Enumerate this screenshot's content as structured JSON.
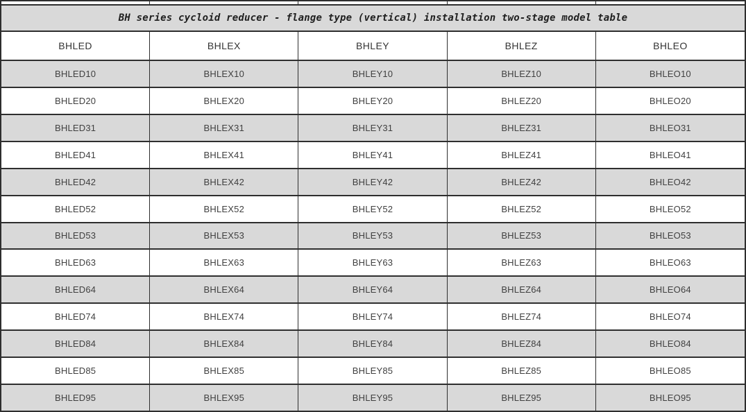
{
  "table": {
    "title": "BH series cycloid reducer - flange type (vertical) installation two-stage model table",
    "columns": [
      "BHLED",
      "BHLEX",
      "BHLEY",
      "BHLEZ",
      "BHLEO"
    ],
    "rows": [
      [
        "BHLED10",
        "BHLEX10",
        "BHLEY10",
        "BHLEZ10",
        "BHLEO10"
      ],
      [
        "BHLED20",
        "BHLEX20",
        "BHLEY20",
        "BHLEZ20",
        "BHLEO20"
      ],
      [
        "BHLED31",
        "BHLEX31",
        "BHLEY31",
        "BHLEZ31",
        "BHLEO31"
      ],
      [
        "BHLED41",
        "BHLEX41",
        "BHLEY41",
        "BHLEZ41",
        "BHLEO41"
      ],
      [
        "BHLED42",
        "BHLEX42",
        "BHLEY42",
        "BHLEZ42",
        "BHLEO42"
      ],
      [
        "BHLED52",
        "BHLEX52",
        "BHLEY52",
        "BHLEZ52",
        "BHLEO52"
      ],
      [
        "BHLED53",
        "BHLEX53",
        "BHLEY53",
        "BHLEZ53",
        "BHLEO53"
      ],
      [
        "BHLED63",
        "BHLEX63",
        "BHLEY63",
        "BHLEZ63",
        "BHLEO63"
      ],
      [
        "BHLED64",
        "BHLEX64",
        "BHLEY64",
        "BHLEZ64",
        "BHLEO64"
      ],
      [
        "BHLED74",
        "BHLEX74",
        "BHLEY74",
        "BHLEZ74",
        "BHLEO74"
      ],
      [
        "BHLED84",
        "BHLEX84",
        "BHLEY84",
        "BHLEZ84",
        "BHLEO84"
      ],
      [
        "BHLED85",
        "BHLEX85",
        "BHLEY85",
        "BHLEZ85",
        "BHLEO85"
      ],
      [
        "BHLED95",
        "BHLEX95",
        "BHLEY95",
        "BHLEZ95",
        "BHLEO95"
      ]
    ],
    "shaded_row_indices": [
      0,
      2,
      4,
      6,
      8,
      10,
      12
    ],
    "colors": {
      "row_shaded": "#d9d9d9",
      "row_plain": "#ffffff",
      "title_bg": "#d9d9d9",
      "border": "#2e2e2e",
      "text": "#404040"
    }
  }
}
